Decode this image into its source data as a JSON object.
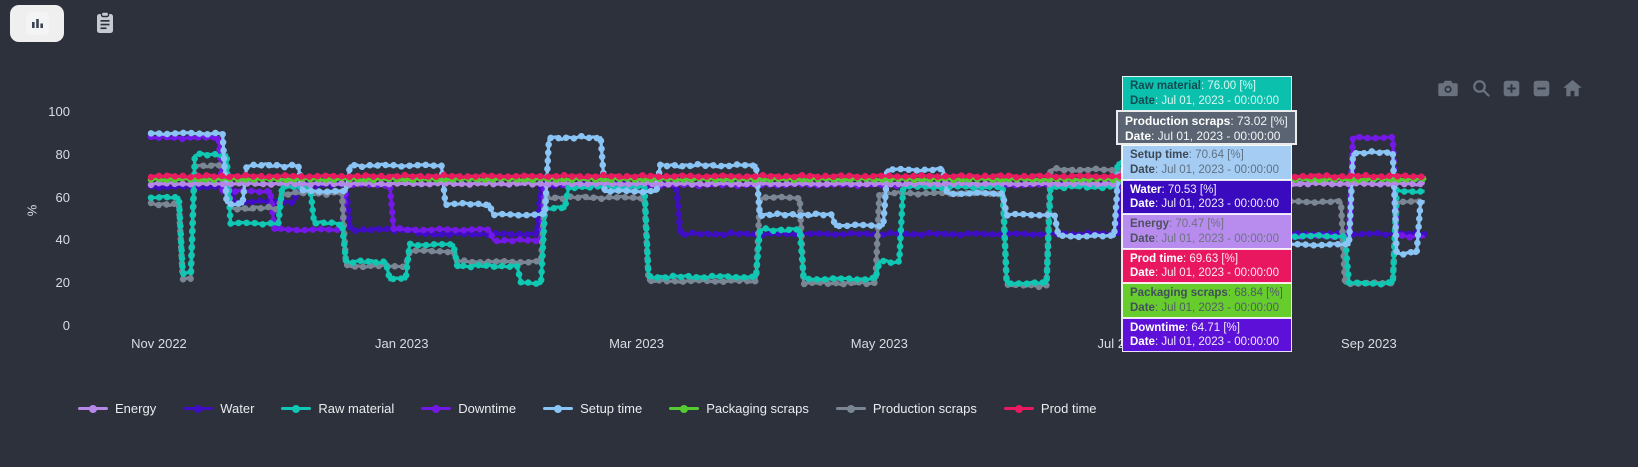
{
  "toolbar": {
    "buttons": [
      {
        "name": "chart-view",
        "icon": "bar-chart-icon",
        "active": true
      },
      {
        "name": "table-view",
        "icon": "clipboard-icon",
        "active": false
      }
    ]
  },
  "modebar": {
    "icons": [
      "camera",
      "zoom",
      "zoom-in",
      "zoom-out",
      "home"
    ]
  },
  "tooltip": {
    "date_label": "Date",
    "date": "Jul 01, 2023 - 00:00:00",
    "unit": "[%]",
    "rows": [
      {
        "name": "Raw material",
        "value": "76.00",
        "bg": "#0bc1ae",
        "strong": "#134b52",
        "muted": "#d8f7f0",
        "highlight": false
      },
      {
        "name": "Production scraps",
        "value": "73.02",
        "bg": "#5b6472",
        "strong": "#ffffff",
        "muted": "#f2f4f6",
        "highlight": true
      },
      {
        "name": "Setup time",
        "value": "70.64",
        "bg": "#a5cdf4",
        "strong": "#3d4854",
        "muted": "#607183",
        "highlight": false
      },
      {
        "name": "Water",
        "value": "70.53",
        "bg": "#3a0abf",
        "strong": "#ffffff",
        "muted": "#efeaff",
        "highlight": false
      },
      {
        "name": "Energy",
        "value": "70.47",
        "bg": "#b78cee",
        "strong": "#4e5260",
        "muted": "#6f7380",
        "highlight": false
      },
      {
        "name": "Prod time",
        "value": "69.63",
        "bg": "#e9175f",
        "strong": "#ffffff",
        "muted": "#ffe9f1",
        "highlight": false
      },
      {
        "name": "Packaging scraps",
        "value": "68.84",
        "bg": "#67cd2c",
        "strong": "#41505c",
        "muted": "#4e5d66",
        "highlight": false
      },
      {
        "name": "Downtime",
        "value": "64.71",
        "bg": "#5c10d8",
        "strong": "#ffffff",
        "muted": "#f0e8ff",
        "highlight": false
      }
    ]
  },
  "chart_data": {
    "type": "line",
    "title": "",
    "xlabel": "",
    "ylabel": "%",
    "ylim": [
      0,
      100
    ],
    "yticks": [
      100,
      80,
      60,
      40,
      20,
      0
    ],
    "grid": false,
    "legend_position": "bottom-left",
    "x_unit": "days since Oct 30, 2022",
    "xticks": [
      {
        "label": "Nov 2022",
        "day": 2
      },
      {
        "label": "Jan 2023",
        "day": 63
      },
      {
        "label": "Mar 2023",
        "day": 122
      },
      {
        "label": "May 2023",
        "day": 183
      },
      {
        "label": "Jul 2023",
        "day": 244
      },
      {
        "label": "Sep 2023",
        "day": 306
      }
    ],
    "hover_day": 244,
    "series": [
      {
        "name": "Energy",
        "color": "#b588e8",
        "z": 6,
        "amp": 0.4,
        "steps": [
          [
            0,
            66.5
          ],
          [
            242,
            66.5
          ],
          [
            243,
            70.47
          ],
          [
            245,
            70.47
          ],
          [
            246,
            66.5
          ],
          [
            320,
            66.5
          ]
        ]
      },
      {
        "name": "Water",
        "color": "#3f0dc4",
        "z": 1,
        "amp": 0.45,
        "steps": [
          [
            0,
            65
          ],
          [
            20,
            65
          ],
          [
            21,
            58
          ],
          [
            36,
            58
          ],
          [
            37,
            66
          ],
          [
            49,
            66
          ],
          [
            50,
            45
          ],
          [
            66,
            45
          ],
          [
            67,
            43
          ],
          [
            97,
            43
          ],
          [
            98,
            66
          ],
          [
            132,
            66
          ],
          [
            133,
            43
          ],
          [
            243,
            43
          ],
          [
            244,
            70.53
          ],
          [
            245,
            70.53
          ],
          [
            246,
            43
          ],
          [
            320,
            43
          ]
        ]
      },
      {
        "name": "Raw material",
        "color": "#0fc7b2",
        "z": 4,
        "amp": 0.5,
        "steps": [
          [
            0,
            60
          ],
          [
            7,
            60
          ],
          [
            8,
            25
          ],
          [
            10,
            25
          ],
          [
            11,
            80
          ],
          [
            19,
            80
          ],
          [
            20,
            48
          ],
          [
            32,
            48
          ],
          [
            33,
            65
          ],
          [
            40,
            65
          ],
          [
            41,
            48
          ],
          [
            48,
            48
          ],
          [
            49,
            30
          ],
          [
            59,
            30
          ],
          [
            60,
            22
          ],
          [
            64,
            22
          ],
          [
            65,
            38
          ],
          [
            76,
            38
          ],
          [
            77,
            28
          ],
          [
            92,
            28
          ],
          [
            93,
            20
          ],
          [
            98,
            20
          ],
          [
            99,
            55
          ],
          [
            104,
            55
          ],
          [
            105,
            65
          ],
          [
            124,
            65
          ],
          [
            125,
            23
          ],
          [
            152,
            23
          ],
          [
            153,
            45
          ],
          [
            163,
            45
          ],
          [
            164,
            22
          ],
          [
            182,
            22
          ],
          [
            183,
            30
          ],
          [
            188,
            30
          ],
          [
            189,
            65
          ],
          [
            214,
            65
          ],
          [
            215,
            20
          ],
          [
            225,
            20
          ],
          [
            226,
            65
          ],
          [
            242,
            65
          ],
          [
            243,
            76
          ],
          [
            245,
            76
          ],
          [
            246,
            56
          ],
          [
            262,
            56
          ],
          [
            263,
            48
          ],
          [
            284,
            48
          ],
          [
            285,
            42
          ],
          [
            300,
            42
          ],
          [
            301,
            20
          ],
          [
            312,
            20
          ],
          [
            313,
            63
          ],
          [
            320,
            63
          ]
        ]
      },
      {
        "name": "Downtime",
        "color": "#7418e8",
        "z": 2,
        "amp": 0.45,
        "steps": [
          [
            0,
            88
          ],
          [
            17,
            88
          ],
          [
            18,
            63
          ],
          [
            30,
            63
          ],
          [
            31,
            45
          ],
          [
            48,
            45
          ],
          [
            49,
            66
          ],
          [
            60,
            66
          ],
          [
            61,
            45
          ],
          [
            85,
            45
          ],
          [
            86,
            40
          ],
          [
            98,
            40
          ],
          [
            99,
            66
          ],
          [
            242,
            66
          ],
          [
            243,
            64.71
          ],
          [
            245,
            64.71
          ],
          [
            246,
            66
          ],
          [
            283,
            66
          ],
          [
            284,
            42
          ],
          [
            301,
            42
          ],
          [
            302,
            88
          ],
          [
            312,
            88
          ],
          [
            313,
            42
          ],
          [
            320,
            42
          ]
        ]
      },
      {
        "name": "Setup time",
        "color": "#8ac4f5",
        "z": 5,
        "amp": 0.5,
        "steps": [
          [
            0,
            90
          ],
          [
            18,
            90
          ],
          [
            19,
            57
          ],
          [
            23,
            57
          ],
          [
            24,
            75
          ],
          [
            37,
            75
          ],
          [
            38,
            63
          ],
          [
            49,
            63
          ],
          [
            50,
            75
          ],
          [
            73,
            75
          ],
          [
            74,
            57
          ],
          [
            85,
            57
          ],
          [
            86,
            52
          ],
          [
            99,
            52
          ],
          [
            100,
            88
          ],
          [
            113,
            88
          ],
          [
            114,
            63
          ],
          [
            127,
            63
          ],
          [
            128,
            75
          ],
          [
            152,
            75
          ],
          [
            153,
            52
          ],
          [
            171,
            52
          ],
          [
            172,
            47
          ],
          [
            184,
            47
          ],
          [
            185,
            73
          ],
          [
            199,
            73
          ],
          [
            200,
            62
          ],
          [
            214,
            62
          ],
          [
            215,
            52
          ],
          [
            227,
            52
          ],
          [
            228,
            42
          ],
          [
            242,
            42
          ],
          [
            243,
            70.64
          ],
          [
            245,
            70.64
          ],
          [
            246,
            38
          ],
          [
            301,
            38
          ],
          [
            302,
            81
          ],
          [
            312,
            81
          ],
          [
            313,
            34
          ],
          [
            318,
            34
          ],
          [
            319,
            58
          ],
          [
            320,
            58
          ]
        ]
      },
      {
        "name": "Packaging scraps",
        "color": "#55cb32",
        "z": 7,
        "amp": 0.4,
        "steps": [
          [
            0,
            68.6
          ],
          [
            242,
            68.6
          ],
          [
            243,
            68.84
          ],
          [
            245,
            68.84
          ],
          [
            246,
            68.6
          ],
          [
            320,
            68.6
          ]
        ]
      },
      {
        "name": "Production scraps",
        "color": "#7b8694",
        "z": 3,
        "amp": 0.5,
        "steps": [
          [
            0,
            57
          ],
          [
            7,
            57
          ],
          [
            8,
            22
          ],
          [
            10,
            22
          ],
          [
            11,
            75
          ],
          [
            19,
            75
          ],
          [
            20,
            55
          ],
          [
            32,
            55
          ],
          [
            33,
            62
          ],
          [
            48,
            62
          ],
          [
            49,
            28
          ],
          [
            64,
            28
          ],
          [
            65,
            35
          ],
          [
            76,
            35
          ],
          [
            77,
            30
          ],
          [
            98,
            30
          ],
          [
            99,
            60
          ],
          [
            124,
            60
          ],
          [
            125,
            21
          ],
          [
            152,
            21
          ],
          [
            153,
            60
          ],
          [
            163,
            60
          ],
          [
            164,
            20
          ],
          [
            182,
            20
          ],
          [
            183,
            62
          ],
          [
            214,
            62
          ],
          [
            215,
            19
          ],
          [
            225,
            19
          ],
          [
            226,
            73
          ],
          [
            245,
            73
          ],
          [
            246,
            62
          ],
          [
            262,
            62
          ],
          [
            263,
            60
          ],
          [
            284,
            60
          ],
          [
            285,
            58
          ],
          [
            299,
            58
          ],
          [
            300,
            20
          ],
          [
            312,
            20
          ],
          [
            313,
            58
          ],
          [
            320,
            58
          ]
        ]
      },
      {
        "name": "Prod time",
        "color": "#ea1a60",
        "z": 8,
        "amp": 0.4,
        "steps": [
          [
            0,
            70
          ],
          [
            242,
            70
          ],
          [
            243,
            69.63
          ],
          [
            245,
            69.63
          ],
          [
            246,
            70
          ],
          [
            320,
            70
          ]
        ]
      }
    ]
  }
}
